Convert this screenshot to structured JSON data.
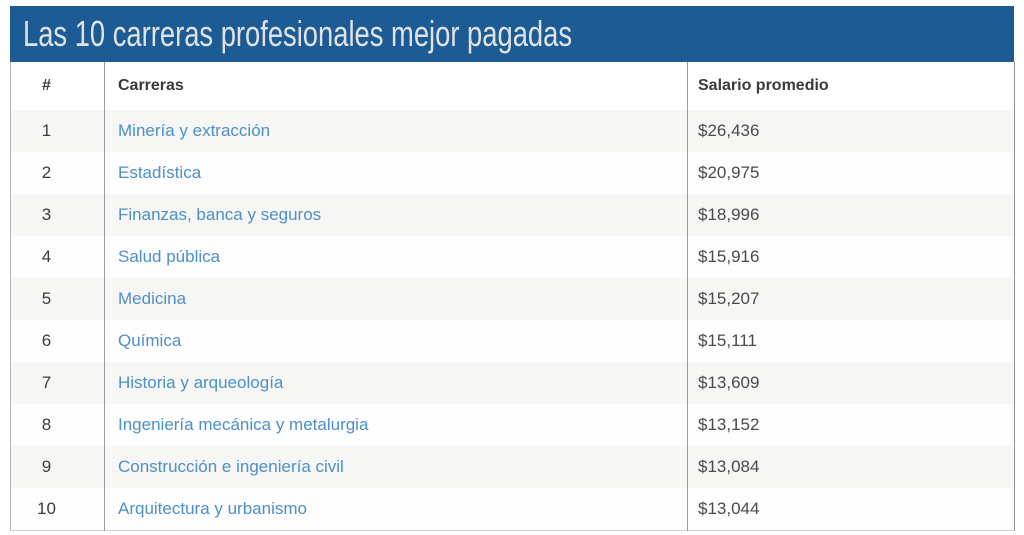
{
  "title_bar": {
    "title": "Las 10 carreras profesionales mejor pagadas"
  },
  "table": {
    "columns": {
      "rank": "#",
      "career": "Carreras",
      "salary": "Salario promedio"
    },
    "rows": [
      {
        "rank": "1",
        "career": "Minería y extracción",
        "salary": "$26,436"
      },
      {
        "rank": "2",
        "career": "Estadística",
        "salary": "$20,975"
      },
      {
        "rank": "3",
        "career": "Finanzas, banca y seguros",
        "salary": "$18,996"
      },
      {
        "rank": "4",
        "career": "Salud pública",
        "salary": "$15,916"
      },
      {
        "rank": "5",
        "career": "Medicina",
        "salary": "$15,207"
      },
      {
        "rank": "6",
        "career": "Química",
        "salary": "$15,111"
      },
      {
        "rank": "7",
        "career": "Historia y arqueología",
        "salary": "$13,609"
      },
      {
        "rank": "8",
        "career": "Ingeniería mecánica y metalurgia",
        "salary": "$13,152"
      },
      {
        "rank": "9",
        "career": "Construcción e ingeniería civil",
        "salary": "$13,084"
      },
      {
        "rank": "10",
        "career": "Arquitectura y urbanismo",
        "salary": "$13,044"
      }
    ]
  },
  "colors": {
    "header_bg": "#1d5b94",
    "header_text": "#dfe3e6",
    "link_blue": "#4d8fc8",
    "row_alt_bg": "#f6f6f4",
    "row_bg": "#fdfdfd",
    "column_header_text": "#3a3a3a",
    "value_text": "#4a4a4a",
    "divider": "#9b9b9b"
  },
  "chart_data": {
    "type": "table",
    "title": "Las 10 carreras profesionales mejor pagadas",
    "columns": [
      "#",
      "Carreras",
      "Salario promedio"
    ],
    "categories": [
      "Minería y extracción",
      "Estadística",
      "Finanzas, banca y seguros",
      "Salud pública",
      "Medicina",
      "Química",
      "Historia y arqueología",
      "Ingeniería mecánica y metalurgia",
      "Construcción e ingeniería civil",
      "Arquitectura y urbanismo"
    ],
    "values": [
      26436,
      20975,
      18996,
      15916,
      15207,
      15111,
      13609,
      13152,
      13084,
      13044
    ],
    "value_format": "$#,###",
    "ranks": [
      1,
      2,
      3,
      4,
      5,
      6,
      7,
      8,
      9,
      10
    ]
  }
}
